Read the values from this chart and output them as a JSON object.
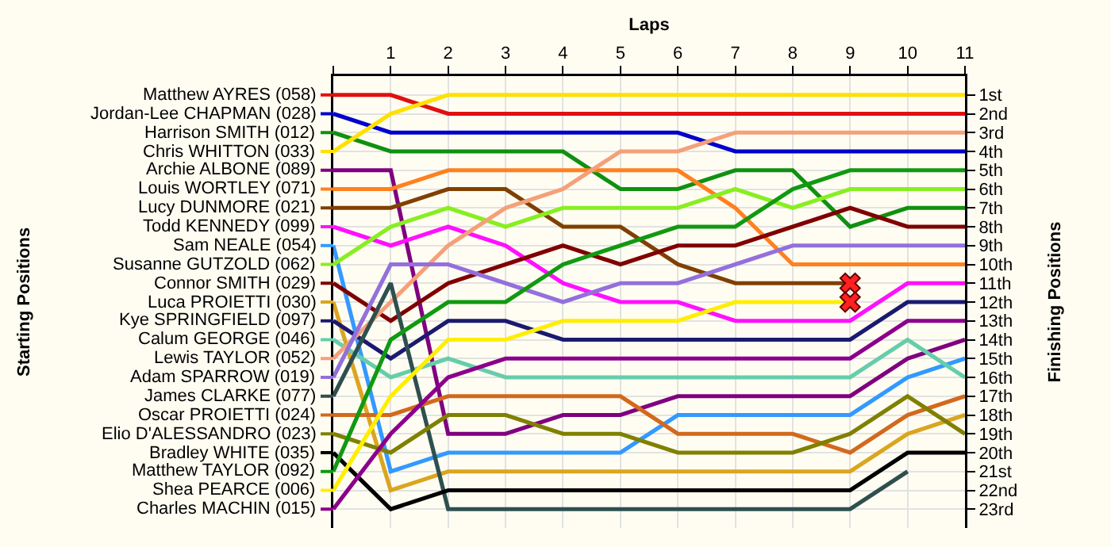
{
  "chart_data": {
    "type": "line",
    "xlabel": "Laps",
    "y2label": "Finishing Positions",
    "annotations": [
      "Starting Positions"
    ],
    "legend": "left",
    "x": [
      0,
      1,
      2,
      3,
      4,
      5,
      6,
      7,
      8,
      9,
      10,
      11
    ],
    "xlim": [
      0,
      11
    ],
    "xticks": [
      {
        "value": 0,
        "label": null
      },
      1,
      2,
      3,
      4,
      5,
      6,
      7,
      8,
      9,
      10,
      11
    ],
    "y2lim": [
      24,
      0
    ],
    "y2ticks": [
      {
        "value": 1,
        "label": "1st"
      },
      {
        "value": 2,
        "label": "2nd"
      },
      {
        "value": 3,
        "label": "3rd"
      },
      {
        "value": 4,
        "label": "4th"
      },
      {
        "value": 5,
        "label": "5th"
      },
      {
        "value": 6,
        "label": "6th"
      },
      {
        "value": 7,
        "label": "7th"
      },
      {
        "value": 8,
        "label": "8th"
      },
      {
        "value": 9,
        "label": "9th"
      },
      {
        "value": 10,
        "label": "10th"
      },
      {
        "value": 11,
        "label": "11th"
      },
      {
        "value": 12,
        "label": "12th"
      },
      {
        "value": 13,
        "label": "13th"
      },
      {
        "value": 14,
        "label": "14th"
      },
      {
        "value": 15,
        "label": "15th"
      },
      {
        "value": 16,
        "label": "16th"
      },
      {
        "value": 17,
        "label": "17th"
      },
      {
        "value": 18,
        "label": "18th"
      },
      {
        "value": 19,
        "label": "19th"
      },
      {
        "value": 20,
        "label": "20th"
      },
      {
        "value": 21,
        "label": "21st"
      },
      {
        "value": 22,
        "label": "22nd"
      },
      {
        "value": 23,
        "label": "23rd"
      }
    ],
    "grid": true,
    "series": [
      {
        "name": "Matthew AYRES (058)",
        "axis": "y2",
        "color": "#e01010",
        "values": [
          1,
          1,
          2,
          2,
          2,
          2,
          2,
          2,
          2,
          2,
          2,
          2
        ]
      },
      {
        "name": "Jordan-Lee CHAPMAN (028)",
        "axis": "y2",
        "color": "#0000cc",
        "values": [
          2,
          3,
          3,
          3,
          3,
          3,
          3,
          4,
          4,
          4,
          4,
          4
        ]
      },
      {
        "name": "Harrison SMITH (012)",
        "axis": "y2",
        "color": "#109010",
        "values": [
          3,
          4,
          4,
          4,
          4,
          6,
          6,
          5,
          5,
          8,
          7,
          7
        ]
      },
      {
        "name": "Chris WHITTON (033)",
        "axis": "y2",
        "color": "#ffe000",
        "values": [
          4,
          2,
          1,
          1,
          1,
          1,
          1,
          1,
          1,
          1,
          1,
          1
        ]
      },
      {
        "name": "Archie ALBONE (089)",
        "axis": "y2",
        "color": "#800080",
        "values": [
          5,
          5,
          19,
          19,
          18,
          18,
          17,
          17,
          17,
          17,
          15,
          14
        ]
      },
      {
        "name": "Louis WORTLEY (071)",
        "axis": "y2",
        "color": "#ff8020",
        "values": [
          6,
          6,
          5,
          5,
          5,
          5,
          5,
          7,
          10,
          10,
          10,
          10
        ]
      },
      {
        "name": "Lucy DUNMORE (021)",
        "axis": "y2",
        "color": "#804000",
        "values": [
          7,
          7,
          6,
          6,
          8,
          8,
          10,
          11,
          11,
          11,
          null,
          null
        ]
      },
      {
        "name": "Todd KENNEDY (099)",
        "axis": "y2",
        "color": "#ff10ff",
        "values": [
          8,
          9,
          8,
          9,
          11,
          12,
          12,
          13,
          13,
          13,
          11,
          11
        ]
      },
      {
        "name": "Sam NEALE (054)",
        "axis": "y2",
        "color": "#3399ff",
        "values": [
          9,
          21,
          20,
          20,
          20,
          20,
          18,
          18,
          18,
          18,
          16,
          15
        ]
      },
      {
        "name": "Susanne GUTZOLD (062)",
        "axis": "y2",
        "color": "#88ee22",
        "values": [
          10,
          8,
          7,
          8,
          7,
          7,
          7,
          6,
          7,
          6,
          6,
          6
        ]
      },
      {
        "name": "Connor SMITH (029)",
        "axis": "y2",
        "color": "#800000",
        "values": [
          11,
          13,
          11,
          10,
          9,
          10,
          9,
          9,
          8,
          7,
          8,
          8
        ]
      },
      {
        "name": "Luca PROIETTI (030)",
        "axis": "y2",
        "color": "#daa520",
        "values": [
          12,
          22,
          21,
          21,
          21,
          21,
          21,
          21,
          21,
          21,
          19,
          18
        ]
      },
      {
        "name": "Kye SPRINGFIELD (097)",
        "axis": "y2",
        "color": "#1a1a70",
        "values": [
          13,
          15,
          13,
          13,
          14,
          14,
          14,
          14,
          14,
          14,
          12,
          12
        ]
      },
      {
        "name": "Calum GEORGE (046)",
        "axis": "y2",
        "color": "#66cdaa",
        "values": [
          14,
          16,
          15,
          16,
          16,
          16,
          16,
          16,
          16,
          16,
          14,
          16
        ]
      },
      {
        "name": "Lewis TAYLOR (052)",
        "axis": "y2",
        "color": "#f4a07a",
        "values": [
          15,
          12,
          9,
          7,
          6,
          4,
          4,
          3,
          3,
          3,
          3,
          3
        ]
      },
      {
        "name": "Adam SPARROW (019)",
        "axis": "y2",
        "color": "#9370db",
        "values": [
          16,
          10,
          10,
          11,
          12,
          11,
          11,
          10,
          9,
          9,
          9,
          9
        ]
      },
      {
        "name": "James CLARKE (077)",
        "axis": "y2",
        "color": "#2f4f4f",
        "values": [
          17,
          11,
          23,
          23,
          23,
          23,
          23,
          23,
          23,
          23,
          21,
          null
        ]
      },
      {
        "name": "Oscar PROIETTI (024)",
        "axis": "y2",
        "color": "#d2691e",
        "values": [
          18,
          18,
          17,
          17,
          17,
          17,
          19,
          19,
          19,
          20,
          18,
          17
        ]
      },
      {
        "name": "Elio D'ALESSANDRO (023)",
        "axis": "y2",
        "color": "#808000",
        "values": [
          19,
          20,
          18,
          18,
          19,
          19,
          20,
          20,
          20,
          19,
          17,
          19
        ]
      },
      {
        "name": "Bradley WHITE (035)",
        "axis": "y2",
        "color": "#000000",
        "values": [
          20,
          23,
          22,
          22,
          22,
          22,
          22,
          22,
          22,
          22,
          20,
          20
        ]
      },
      {
        "name": "Matthew TAYLOR (092)",
        "axis": "y2",
        "color": "#119911",
        "values": [
          21,
          14,
          12,
          12,
          10,
          9,
          8,
          8,
          6,
          5,
          5,
          5
        ]
      },
      {
        "name": "Shea PEARCE (006)",
        "axis": "y2",
        "color": "#ffee00",
        "values": [
          22,
          17,
          14,
          14,
          13,
          13,
          13,
          12,
          12,
          12,
          null,
          null
        ]
      },
      {
        "name": "Charles MACHIN (015)",
        "axis": "y2",
        "color": "#8b008b",
        "values": [
          23,
          19,
          16,
          15,
          15,
          15,
          15,
          15,
          15,
          15,
          13,
          13
        ]
      },
      {
        "axis": "y2",
        "type": "scatter",
        "marker": "cross",
        "color": "#ff2020",
        "x": [
          9,
          9
        ],
        "values": [
          11,
          12
        ]
      }
    ]
  }
}
